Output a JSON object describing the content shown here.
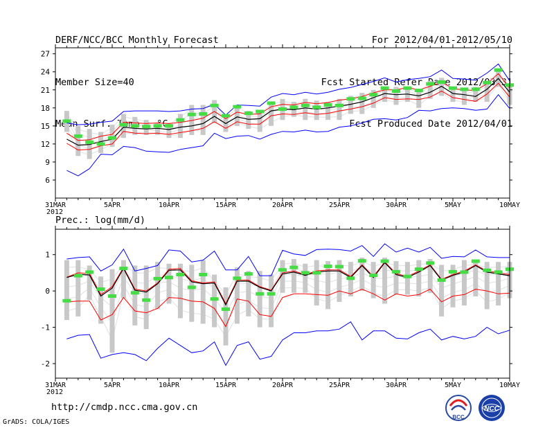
{
  "header": {
    "left": [
      "DERF/NCC/BCC Monthly Forecast",
      "Member Size=40",
      "Mean Surf. Temp.: °C"
    ],
    "right": [
      "For 2012/04/01-2012/05/10",
      "Fcst Started Refer Date 2012/03/31",
      "Fcst Produced Date 2012/04/01"
    ]
  },
  "footer": {
    "url": "http://cmdp.ncc.cma.gov.cn",
    "credit": "GrADS: COLA/IGES"
  },
  "logos": {
    "left_text": "BCC",
    "right_text": "NCC"
  },
  "colors": {
    "max_min": "#0000ff",
    "sd": "#ff0000",
    "mean": "#000000",
    "obs": "#44dd44",
    "box": "#c8c8c8",
    "ensemble": "#e0e0e0"
  },
  "chart_data": [
    {
      "type": "line",
      "title": "Mean Surf. Temp.: °C",
      "x_start": "2012-03-31",
      "x_ticks": [
        {
          "day": 0,
          "label": "31MAR",
          "sub": "2012"
        },
        {
          "day": 5,
          "label": "5APR"
        },
        {
          "day": 10,
          "label": "10APR"
        },
        {
          "day": 15,
          "label": "15APR"
        },
        {
          "day": 20,
          "label": "20APR"
        },
        {
          "day": 25,
          "label": "25APR"
        },
        {
          "day": 30,
          "label": "30APR"
        },
        {
          "day": 35,
          "label": "5MAY"
        },
        {
          "day": 40,
          "label": "10MAY"
        }
      ],
      "xlim": [
        0,
        40
      ],
      "ylim": [
        3,
        28
      ],
      "y_ticks": [
        6,
        9,
        12,
        15,
        18,
        21,
        24,
        27
      ],
      "days": [
        1,
        2,
        3,
        4,
        5,
        6,
        7,
        8,
        9,
        10,
        11,
        12,
        13,
        14,
        15,
        16,
        17,
        18,
        19,
        20,
        21,
        22,
        23,
        24,
        25,
        26,
        27,
        28,
        29,
        30,
        31,
        32,
        33,
        34,
        35,
        36,
        37,
        38,
        39,
        40
      ],
      "max": [
        15.5,
        15.2,
        15.3,
        15.6,
        15.8,
        17.4,
        17.5,
        17.5,
        17.5,
        17.4,
        17.5,
        17.8,
        17.9,
        18.6,
        16.8,
        18.5,
        18.4,
        18.3,
        19.8,
        20.4,
        20.2,
        20.6,
        20.3,
        20.6,
        21.1,
        21.4,
        21.9,
        22.4,
        23.0,
        22.3,
        22.7,
        22.9,
        23.2,
        24.3,
        22.9,
        22.8,
        22.6,
        23.8,
        25.3,
        22.5
      ],
      "min": [
        7.6,
        6.7,
        7.9,
        10.3,
        10.2,
        11.6,
        11.4,
        10.8,
        10.7,
        10.6,
        11.1,
        11.4,
        11.7,
        13.8,
        12.9,
        13.3,
        13.4,
        12.8,
        13.6,
        14.1,
        14.0,
        14.3,
        14.0,
        14.1,
        14.8,
        15.0,
        15.5,
        16.1,
        16.2,
        16.0,
        16.4,
        17.6,
        17.5,
        17.9,
        18.0,
        17.9,
        17.6,
        17.8,
        20.2,
        17.9
      ],
      "sd_upper": [
        13.8,
        12.6,
        12.7,
        13.3,
        13.6,
        15.6,
        15.5,
        15.4,
        15.5,
        15.4,
        15.6,
        15.9,
        16.3,
        17.4,
        16.2,
        17.3,
        16.9,
        17.0,
        18.2,
        18.6,
        18.5,
        18.9,
        18.7,
        18.9,
        19.3,
        19.5,
        19.9,
        20.5,
        21.0,
        21.0,
        21.4,
        21.0,
        21.6,
        22.3,
        21.2,
        21.0,
        20.9,
        22.0,
        23.7,
        21.3
      ],
      "mean": [
        12.8,
        11.8,
        11.9,
        12.4,
        12.8,
        14.8,
        14.6,
        14.5,
        14.6,
        14.4,
        14.8,
        15.0,
        15.4,
        16.6,
        15.4,
        16.5,
        16.1,
        16.2,
        17.5,
        17.8,
        17.7,
        18.0,
        17.8,
        18.0,
        18.3,
        18.6,
        19.0,
        19.7,
        20.4,
        20.2,
        20.3,
        20.0,
        20.6,
        21.6,
        20.4,
        20.2,
        19.9,
        21.1,
        22.9,
        20.6
      ],
      "sd_lower": [
        12.1,
        11.0,
        11.1,
        11.7,
        12.0,
        14.1,
        13.8,
        13.7,
        13.8,
        13.6,
        13.9,
        14.2,
        14.6,
        15.7,
        14.6,
        15.7,
        15.3,
        15.3,
        16.7,
        17.0,
        16.9,
        17.2,
        16.9,
        17.1,
        17.5,
        17.8,
        18.2,
        18.8,
        19.7,
        19.4,
        19.5,
        19.4,
        19.8,
        20.8,
        19.7,
        19.4,
        19.1,
        20.3,
        22.1,
        19.8
      ],
      "box_hi": [
        17.5,
        15.0,
        14.5,
        14.0,
        15.2,
        17.0,
        16.5,
        16.0,
        15.5,
        15.5,
        17.0,
        18.5,
        18.5,
        19.3,
        16.5,
        18.5,
        17.5,
        17.5,
        19.0,
        19.5,
        19.0,
        19.5,
        19.2,
        19.0,
        19.5,
        20.0,
        20.5,
        21.0,
        21.5,
        21.5,
        21.5,
        21.0,
        22.5,
        23.0,
        21.5,
        21.0,
        21.5,
        22.5,
        24.3,
        22.0
      ],
      "box_lo": [
        14.0,
        10.0,
        9.5,
        10.5,
        11.5,
        13.0,
        13.5,
        13.5,
        13.5,
        13.0,
        13.0,
        13.5,
        13.5,
        15.5,
        14.0,
        15.0,
        14.5,
        14.0,
        15.0,
        16.0,
        16.5,
        16.0,
        16.0,
        16.0,
        16.0,
        17.0,
        17.0,
        18.0,
        19.0,
        18.5,
        19.0,
        18.0,
        19.5,
        20.0,
        19.0,
        18.5,
        19.0,
        19.0,
        21.5,
        18.5
      ],
      "obs": [
        15.8,
        13.3,
        12.3,
        12.0,
        13.0,
        15.2,
        15.0,
        14.9,
        15.0,
        15.0,
        16.0,
        16.9,
        17.0,
        18.4,
        16.7,
        18.2,
        17.1,
        17.4,
        18.8,
        17.8,
        18.1,
        18.4,
        18.1,
        18.5,
        18.4,
        19.5,
        19.6,
        20.2,
        21.3,
        20.8,
        21.3,
        20.9,
        22.0,
        22.3,
        21.3,
        21.1,
        21.1,
        22.2,
        24.3,
        21.8
      ],
      "legend": ""
    },
    {
      "type": "line",
      "title": "Prec.: log(mm/d)",
      "x_start": "2012-03-31",
      "x_ticks": [
        {
          "day": 0,
          "label": "31MAR",
          "sub": "2012"
        },
        {
          "day": 5,
          "label": "5APR"
        },
        {
          "day": 10,
          "label": "10APR"
        },
        {
          "day": 15,
          "label": "15APR"
        },
        {
          "day": 20,
          "label": "20APR"
        },
        {
          "day": 25,
          "label": "25APR"
        },
        {
          "day": 30,
          "label": "30APR"
        },
        {
          "day": 35,
          "label": "5MAY"
        },
        {
          "day": 40,
          "label": "10MAY"
        }
      ],
      "xlim": [
        0,
        40
      ],
      "ylim": [
        -2.4,
        1.7
      ],
      "y_ticks": [
        -2,
        -1,
        0,
        1
      ],
      "days": [
        1,
        2,
        3,
        4,
        5,
        6,
        7,
        8,
        9,
        10,
        11,
        12,
        13,
        14,
        15,
        16,
        17,
        18,
        19,
        20,
        21,
        22,
        23,
        24,
        25,
        26,
        27,
        28,
        29,
        30,
        31,
        32,
        33,
        34,
        35,
        36,
        37,
        38,
        39,
        40
      ],
      "max": [
        0.88,
        0.92,
        0.94,
        0.55,
        0.72,
        1.15,
        0.55,
        0.62,
        0.7,
        1.13,
        1.1,
        0.8,
        0.85,
        1.1,
        0.58,
        0.58,
        0.95,
        0.42,
        0.42,
        1.12,
        1.02,
        0.98,
        1.14,
        1.15,
        1.14,
        1.1,
        1.25,
        0.95,
        1.3,
        1.07,
        1.18,
        1.07,
        1.2,
        0.9,
        0.95,
        0.94,
        1.13,
        0.94,
        0.92,
        0.92
      ],
      "min": [
        -1.32,
        -1.22,
        -1.2,
        -1.85,
        -1.75,
        -1.7,
        -1.75,
        -1.92,
        -1.58,
        -1.3,
        -1.5,
        -1.7,
        -1.65,
        -1.4,
        -2.05,
        -1.5,
        -1.4,
        -1.88,
        -1.8,
        -1.35,
        -1.15,
        -1.15,
        -1.1,
        -1.1,
        -1.05,
        -0.85,
        -1.35,
        -1.1,
        -1.1,
        -1.3,
        -1.32,
        -1.15,
        -1.05,
        -1.35,
        -1.25,
        -1.32,
        -1.25,
        -1.0,
        -1.18,
        -1.08
      ],
      "sd_upper": [
        0.38,
        0.5,
        0.48,
        -0.1,
        0.12,
        0.65,
        0.05,
        0.0,
        0.22,
        0.6,
        0.62,
        0.28,
        0.22,
        0.25,
        -0.35,
        0.3,
        0.3,
        0.12,
        0.02,
        0.5,
        0.55,
        0.45,
        0.55,
        0.58,
        0.58,
        0.4,
        0.72,
        0.4,
        0.8,
        0.48,
        0.4,
        0.55,
        0.72,
        0.32,
        0.45,
        0.55,
        0.72,
        0.55,
        0.5,
        0.45
      ],
      "mean": [
        0.37,
        0.46,
        0.44,
        -0.14,
        0.08,
        0.62,
        0.02,
        -0.03,
        0.2,
        0.57,
        0.58,
        0.25,
        0.2,
        0.22,
        -0.38,
        0.27,
        0.27,
        0.1,
        0.0,
        0.47,
        0.52,
        0.43,
        0.52,
        0.55,
        0.55,
        0.37,
        0.7,
        0.37,
        0.78,
        0.45,
        0.37,
        0.52,
        0.7,
        0.3,
        0.43,
        0.52,
        0.7,
        0.52,
        0.47,
        0.42
      ],
      "sd_lower": [
        -0.3,
        -0.28,
        -0.28,
        -0.8,
        -0.65,
        -0.18,
        -0.55,
        -0.6,
        -0.48,
        -0.18,
        -0.2,
        -0.28,
        -0.3,
        -0.48,
        -0.98,
        -0.22,
        -0.28,
        -0.65,
        -0.7,
        -0.18,
        -0.08,
        -0.08,
        -0.1,
        -0.12,
        0.0,
        -0.08,
        0.05,
        -0.08,
        -0.25,
        -0.08,
        -0.14,
        -0.1,
        0.05,
        -0.3,
        -0.14,
        -0.1,
        0.05,
        0.0,
        -0.08,
        -0.06
      ],
      "box_hi": [
        0.85,
        0.85,
        0.7,
        0.4,
        0.6,
        0.85,
        0.7,
        0.7,
        0.8,
        0.75,
        0.75,
        0.72,
        0.85,
        0.45,
        0.1,
        0.65,
        0.55,
        0.55,
        0.45,
        0.85,
        0.88,
        0.75,
        0.85,
        0.82,
        0.85,
        0.8,
        0.92,
        0.8,
        0.92,
        0.82,
        0.8,
        0.85,
        0.88,
        0.72,
        0.72,
        0.85,
        0.85,
        0.8,
        0.8,
        0.8
      ],
      "box_lo": [
        -0.8,
        -0.7,
        -0.25,
        -0.9,
        -1.7,
        -0.2,
        -0.95,
        -1.05,
        -0.5,
        -0.35,
        -0.75,
        -0.85,
        -0.9,
        -1.0,
        -1.5,
        -0.9,
        -0.7,
        -1.0,
        -1.0,
        -0.05,
        -0.05,
        -0.05,
        -0.4,
        -0.5,
        -0.3,
        -0.15,
        0.0,
        -0.2,
        -0.35,
        -0.1,
        -0.1,
        -0.15,
        -0.05,
        -0.7,
        -0.45,
        -0.4,
        -0.15,
        -0.5,
        -0.4,
        -0.2
      ],
      "obs": [
        -0.27,
        0.42,
        0.52,
        0.05,
        -0.14,
        0.62,
        -0.05,
        -0.25,
        0.34,
        0.37,
        0.45,
        0.1,
        0.45,
        -0.22,
        -0.5,
        0.35,
        0.47,
        -0.08,
        -0.08,
        0.58,
        0.65,
        0.5,
        0.5,
        0.68,
        0.67,
        0.35,
        0.83,
        0.43,
        0.82,
        0.53,
        0.4,
        0.6,
        0.77,
        0.3,
        0.53,
        0.52,
        0.82,
        0.57,
        0.52,
        0.6
      ],
      "legend": ""
    }
  ]
}
